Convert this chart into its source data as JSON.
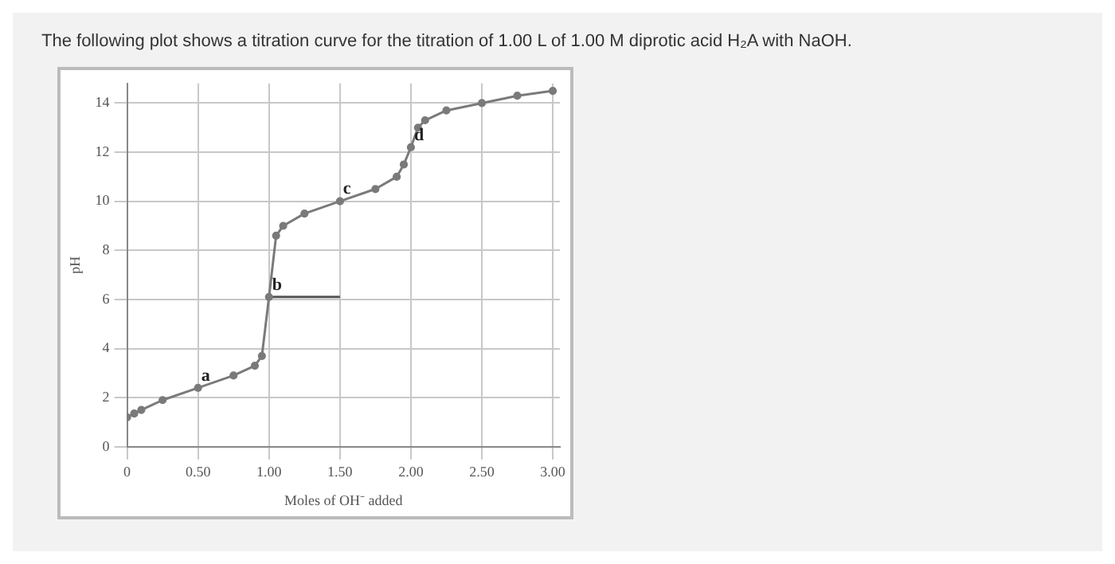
{
  "chart_data": {
    "type": "line",
    "title": "The following plot shows a titration curve for the titration of 1.00 L of 1.00 M diprotic acid H₂A with NaOH.",
    "xlabel": "Moles of OH⁻ added",
    "ylabel": "pH",
    "xlim": [
      0,
      3.05
    ],
    "ylim": [
      0,
      14.8
    ],
    "xticks": [
      0,
      {
        "value": 0.5,
        "label": "0.50"
      },
      {
        "value": 1,
        "label": "1.00"
      },
      {
        "value": 1.5,
        "label": "1.50"
      },
      {
        "value": 2,
        "label": "2.00"
      },
      {
        "value": 2.5,
        "label": "2.50"
      },
      {
        "value": 3,
        "label": "3.00"
      }
    ],
    "yticks": [
      0,
      2,
      4,
      6,
      8,
      10,
      12,
      14
    ],
    "grid": true,
    "marker": "circle",
    "line_style": "solid",
    "series": [
      {
        "color": "#7a7a7a",
        "x": [
          0,
          0.05,
          0.1,
          0.25,
          0.5,
          0.75,
          0.9,
          0.95,
          1.0,
          1.05,
          1.1,
          1.25,
          1.5,
          1.75,
          1.9,
          1.95,
          2.0,
          2.05,
          2.1,
          2.25,
          2.5,
          2.75,
          3.0
        ],
        "values": [
          1.2,
          1.35,
          1.5,
          1.9,
          2.4,
          2.9,
          3.3,
          3.7,
          6.1,
          8.6,
          9.0,
          9.5,
          10.0,
          10.5,
          11.0,
          11.5,
          12.2,
          13.0,
          13.3,
          13.7,
          14.0,
          14.3,
          14.5
        ]
      },
      {
        "type": "line",
        "marker": "none",
        "color": "#555555",
        "x": [
          1.0,
          1.5
        ],
        "values": [
          6.1,
          6.1
        ]
      }
    ],
    "annotations": [
      {
        "text": "a",
        "x": 0.5,
        "y": 2.4
      },
      {
        "text": "b",
        "x": 1.0,
        "y": 6.1
      },
      {
        "text": "c",
        "x": 1.5,
        "y": 10.0
      },
      {
        "text": "d",
        "x": 2.0,
        "y": 12.2
      }
    ]
  }
}
